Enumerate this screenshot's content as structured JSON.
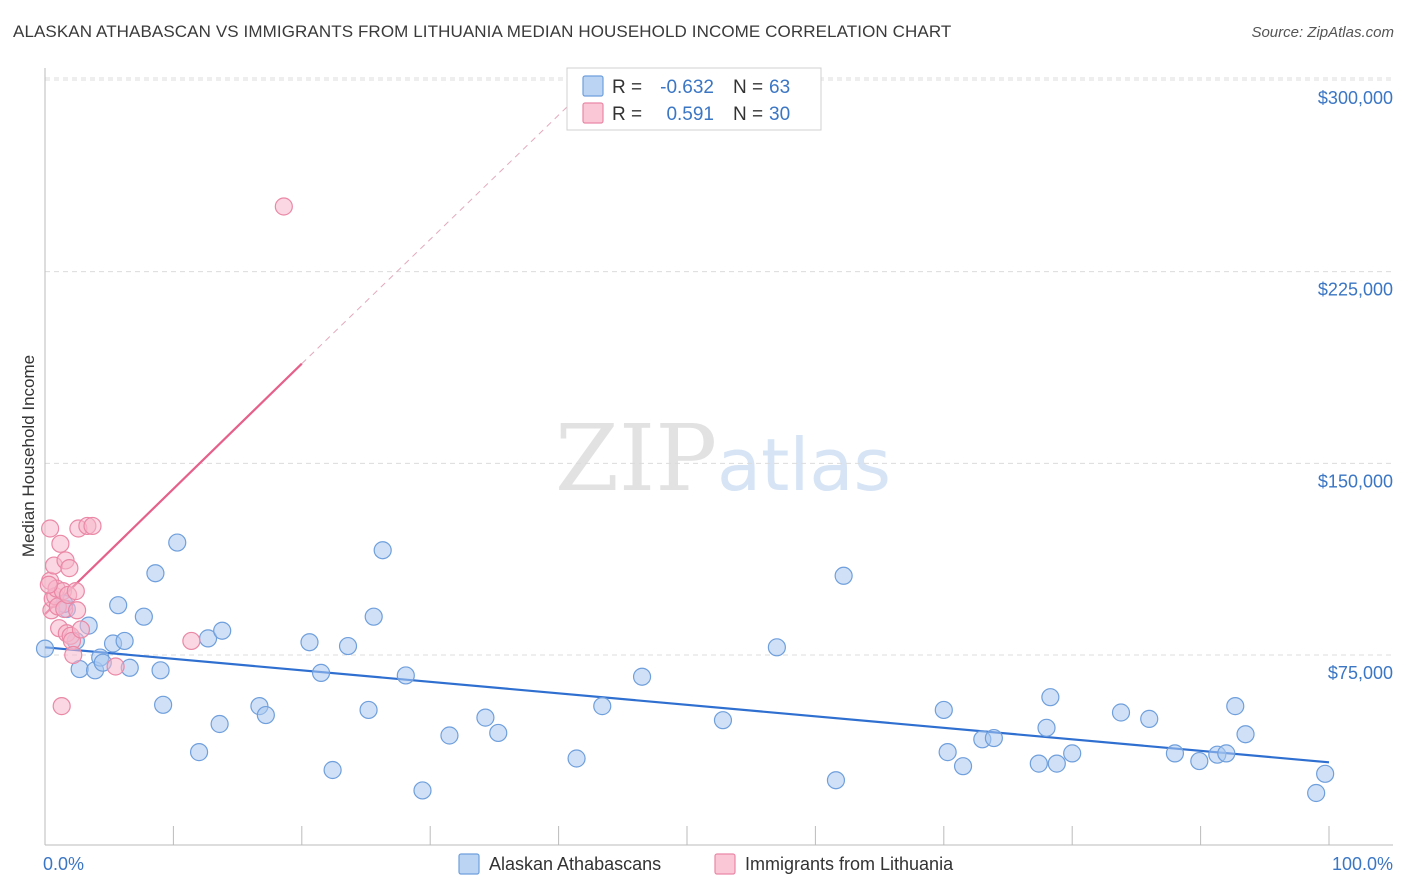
{
  "title": "ALASKAN ATHABASCAN VS IMMIGRANTS FROM LITHUANIA MEDIAN HOUSEHOLD INCOME CORRELATION CHART",
  "source": "Source: ZipAtlas.com",
  "watermark": {
    "zip": "ZIP",
    "atlas": "atlas"
  },
  "colors": {
    "blue_fill": "#aac8f0",
    "blue_stroke": "#6f9fdc",
    "blue_line": "#2f6fd0",
    "pink_fill": "#f6b6ca",
    "pink_stroke": "#ea88a6",
    "pink_line": "#e5608a",
    "axis_text": "#3b76c4"
  },
  "legend": {
    "rows": [
      {
        "r_label": "R =",
        "r_value": "-0.632",
        "n_label": "N =",
        "n_value": "63"
      },
      {
        "r_label": "R =",
        "r_value": "0.591",
        "n_label": "N =",
        "n_value": "30"
      }
    ]
  },
  "chart_data": {
    "type": "scatter",
    "ylabel": "Median Household Income",
    "xlim": [
      0,
      100
    ],
    "ylim": [
      0,
      300000
    ],
    "x_tick_labels": [
      "0.0%",
      "100.0%"
    ],
    "y_ticks": [
      {
        "value": 75000,
        "label": "$75,000"
      },
      {
        "value": 150000,
        "label": "$150,000"
      },
      {
        "value": 225000,
        "label": "$225,000"
      },
      {
        "value": 300000,
        "label": "$300,000"
      }
    ],
    "series": [
      {
        "name": "Alaskan Athabascans",
        "color": "blue",
        "trend": {
          "x0": 0,
          "y0": 78000,
          "x1": 100,
          "y1": 33000,
          "extended_to": null
        },
        "points": [
          [
            0.0,
            77500
          ],
          [
            1.7,
            93000
          ],
          [
            2.4,
            80500
          ],
          [
            2.7,
            69500
          ],
          [
            3.4,
            86500
          ],
          [
            3.9,
            69000
          ],
          [
            4.3,
            74000
          ],
          [
            4.5,
            72000
          ],
          [
            5.3,
            79500
          ],
          [
            5.7,
            94500
          ],
          [
            6.2,
            80500
          ],
          [
            6.6,
            70000
          ],
          [
            7.7,
            90000
          ],
          [
            8.6,
            107000
          ],
          [
            9.0,
            69000
          ],
          [
            9.2,
            55500
          ],
          [
            10.3,
            119000
          ],
          [
            12.0,
            37000
          ],
          [
            12.7,
            81500
          ],
          [
            13.6,
            48000
          ],
          [
            13.8,
            84500
          ],
          [
            16.7,
            55000
          ],
          [
            17.2,
            51500
          ],
          [
            20.6,
            80000
          ],
          [
            21.5,
            68000
          ],
          [
            22.4,
            30000
          ],
          [
            23.6,
            78500
          ],
          [
            25.2,
            53500
          ],
          [
            25.6,
            90000
          ],
          [
            26.3,
            116000
          ],
          [
            28.1,
            67000
          ],
          [
            29.4,
            22000
          ],
          [
            31.5,
            43500
          ],
          [
            34.3,
            50500
          ],
          [
            35.3,
            44500
          ],
          [
            41.4,
            34500
          ],
          [
            43.4,
            55000
          ],
          [
            46.5,
            66500
          ],
          [
            57.0,
            78000
          ],
          [
            52.8,
            49500
          ],
          [
            61.6,
            26000
          ],
          [
            62.2,
            106000
          ],
          [
            70.0,
            53500
          ],
          [
            70.3,
            37000
          ],
          [
            71.5,
            31500
          ],
          [
            73.0,
            42000
          ],
          [
            73.9,
            42500
          ],
          [
            77.4,
            32500
          ],
          [
            78.0,
            46500
          ],
          [
            78.3,
            58500
          ],
          [
            78.8,
            32500
          ],
          [
            80.0,
            36500
          ],
          [
            83.8,
            52500
          ],
          [
            86.0,
            50000
          ],
          [
            88.0,
            36500
          ],
          [
            89.9,
            33500
          ],
          [
            91.3,
            36000
          ],
          [
            92.0,
            36500
          ],
          [
            92.7,
            55000
          ],
          [
            93.5,
            44000
          ],
          [
            99.0,
            21000
          ],
          [
            99.7,
            28500
          ],
          [
            1.5,
            95000
          ]
        ]
      },
      {
        "name": "Immigrants from Lithuania",
        "color": "pink",
        "trend": {
          "x0": 0,
          "y0": 91000,
          "x1": 20,
          "y1": 189000,
          "extended_to": [
            42,
            296000
          ]
        },
        "points": [
          [
            0.4,
            124500
          ],
          [
            0.4,
            104000
          ],
          [
            0.5,
            92500
          ],
          [
            0.6,
            97000
          ],
          [
            0.7,
            110000
          ],
          [
            0.8,
            98000
          ],
          [
            0.9,
            101000
          ],
          [
            1.0,
            94000
          ],
          [
            1.1,
            85500
          ],
          [
            1.2,
            118500
          ],
          [
            1.3,
            55000
          ],
          [
            1.4,
            100000
          ],
          [
            1.5,
            93000
          ],
          [
            1.6,
            112000
          ],
          [
            1.7,
            83500
          ],
          [
            1.8,
            98500
          ],
          [
            1.9,
            109000
          ],
          [
            2.0,
            82500
          ],
          [
            2.1,
            80500
          ],
          [
            2.2,
            75000
          ],
          [
            2.4,
            100000
          ],
          [
            2.5,
            92500
          ],
          [
            2.6,
            124500
          ],
          [
            3.3,
            125500
          ],
          [
            3.7,
            125500
          ],
          [
            5.5,
            70500
          ],
          [
            11.4,
            80500
          ],
          [
            18.6,
            250500
          ],
          [
            0.3,
            102500
          ],
          [
            2.8,
            85000
          ]
        ]
      }
    ]
  },
  "bottom_legend": {
    "items": [
      {
        "label": "Alaskan Athabascans"
      },
      {
        "label": "Immigrants from Lithuania"
      }
    ]
  }
}
